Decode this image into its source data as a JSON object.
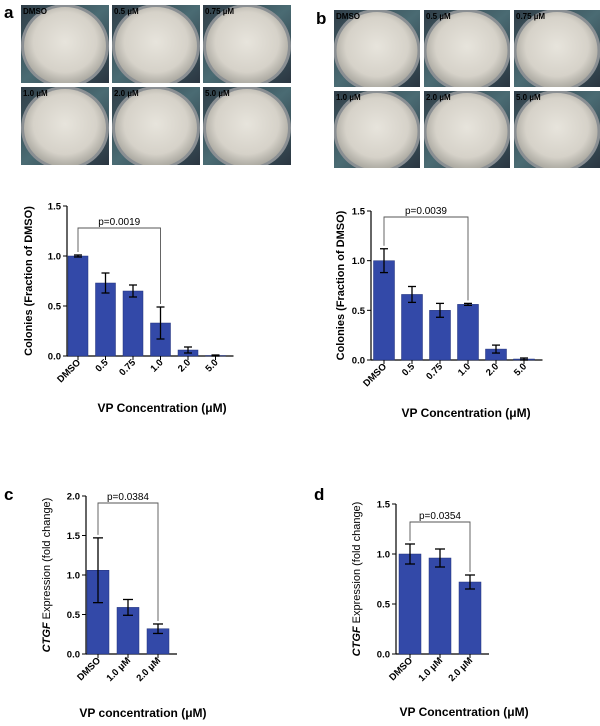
{
  "panels": {
    "a": {
      "letter": "a",
      "dish_labels": [
        "DMSO",
        "0.5 µM",
        "0.75 µM",
        "1.0 µM",
        "2.0 µM",
        "5.0 µM"
      ],
      "chart": {
        "type": "bar",
        "categories": [
          "DMSO",
          "0.5",
          "0.75",
          "1.0",
          "2.0",
          "5.0"
        ],
        "values": [
          1.0,
          0.73,
          0.65,
          0.33,
          0.06,
          0.005
        ],
        "errors": [
          0.01,
          0.1,
          0.06,
          0.16,
          0.03,
          0.005
        ],
        "ylabel": "Colonies (Fraction of DMSO)",
        "xlabel": "VP Concentration (μM)",
        "ylim": [
          0,
          1.5
        ],
        "yticks": [
          "0.0",
          "0.5",
          "1.0",
          "1.5"
        ],
        "bracket": {
          "from": 0,
          "to": 3,
          "label": "p=0.0019"
        }
      }
    },
    "b": {
      "letter": "b",
      "dish_labels": [
        "DMSO",
        "0.5 µM",
        "0.75 µM",
        "1.0 µM",
        "2.0 µM",
        "5.0 µM"
      ],
      "chart": {
        "type": "bar",
        "categories": [
          "DMSO",
          "0.5",
          "0.75",
          "1.0",
          "2.0",
          "5.0"
        ],
        "values": [
          1.0,
          0.66,
          0.5,
          0.56,
          0.11,
          0.01
        ],
        "errors": [
          0.12,
          0.08,
          0.07,
          0.01,
          0.04,
          0.01
        ],
        "ylabel": "Colonies (Fraction of DMSO)",
        "xlabel": "VP Concentration (μM)",
        "ylim": [
          0,
          1.5
        ],
        "yticks": [
          "0.0",
          "0.5",
          "1.0",
          "1.5"
        ],
        "bracket": {
          "from": 0,
          "to": 3,
          "label": "p=0.0039"
        }
      }
    },
    "c": {
      "letter": "c",
      "chart": {
        "type": "bar",
        "categories": [
          "DMSO",
          "1.0 μM",
          "2.0 μM"
        ],
        "values": [
          1.06,
          0.59,
          0.32
        ],
        "errors": [
          0.41,
          0.1,
          0.06
        ],
        "ylabel_italic": "CTGF",
        "ylabel_rest": " Expression (fold change)",
        "xlabel": "VP concentration (μM)",
        "ylim": [
          0,
          2.0
        ],
        "yticks": [
          "0.0",
          "0.5",
          "1.0",
          "1.5",
          "2.0"
        ],
        "bracket": {
          "from": 0,
          "to": 2,
          "label": "p=0.0384"
        }
      }
    },
    "d": {
      "letter": "d",
      "chart": {
        "type": "bar",
        "categories": [
          "DMSO",
          "1.0 μM",
          "2.0 μM"
        ],
        "values": [
          1.0,
          0.96,
          0.72
        ],
        "errors": [
          0.1,
          0.09,
          0.07
        ],
        "ylabel_italic": "CTGF",
        "ylabel_rest": " Expression (fold change)",
        "xlabel": "VP Concentration (μM)",
        "ylim": [
          0,
          1.5
        ],
        "yticks": [
          "0.0",
          "0.5",
          "1.0",
          "1.5"
        ],
        "bracket": {
          "from": 0,
          "to": 2,
          "label": "p=0.0354"
        }
      }
    }
  },
  "colors": {
    "bar": "#3349a8",
    "bar_edge": "#23337a",
    "dish_bg": "#3c4a55",
    "dish_surface": "#d9d6cf",
    "dish_rim": "#8a8f93"
  }
}
